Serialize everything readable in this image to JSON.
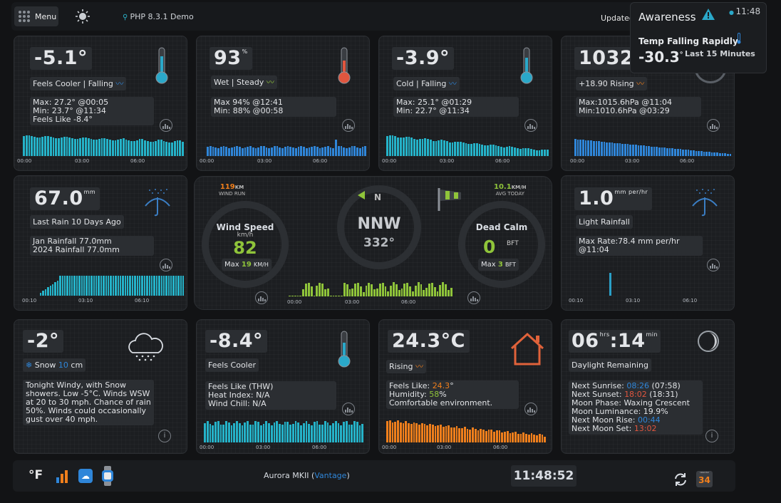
{
  "header": {
    "menu": "Menu",
    "php_label": "PHP 8.3.1 Demo",
    "updated": "Updated"
  },
  "alert": {
    "title": "Awareness",
    "time": "11:48",
    "heading": "Temp Falling Rapidly",
    "value": "-30.3",
    "value_unit": "°",
    "period": "Last 15 Minutes"
  },
  "temp_card": {
    "value": "-5.1°",
    "tag": "Feels Cooler | Falling",
    "stats": [
      "Max: 27.2° @00:05",
      "Min: 23.7° @11:34",
      "Feels Like -8.4°"
    ],
    "axis": [
      "00:00",
      "03:00",
      "06:00"
    ]
  },
  "humidity_card": {
    "value": "93",
    "unit": "%",
    "tag": "Wet | Steady",
    "stats": [
      "Max 94% @12:41",
      "Min: 88% @00:58"
    ],
    "axis": [
      "00:00",
      "03:00",
      "06:00"
    ]
  },
  "dew_card": {
    "value": "-3.9°",
    "tag": "Cold | Falling",
    "stats": [
      "Max: 25.1° @01:29",
      "Min: 22.7° @11:34"
    ],
    "axis": [
      "00:00",
      "03:00",
      "06:00"
    ]
  },
  "pressure_card": {
    "value": "1032",
    "tag": "+18.90 Rising",
    "stats": [
      "Max:1015.6hPa @11:04",
      "Min:1010.6hPa @03:29"
    ],
    "axis": [
      "00:00",
      "03:00",
      "06:00"
    ]
  },
  "rain_card": {
    "value": "67.0",
    "unit": "mm",
    "tag": "Last Rain 10 Days Ago",
    "stats": [
      "Jan Rainfall 77.0mm",
      "2024 Rainfall 77.0mm"
    ],
    "axis": [
      "00:10",
      "03:10",
      "06:10"
    ]
  },
  "wind_card": {
    "run_value": "119",
    "run_unit": "KM",
    "run_label": "WIND RUN",
    "avg_value": "10.1",
    "avg_unit": "KM/H",
    "avg_label": "AVG TODAY",
    "speed_title": "Wind Speed",
    "speed_unit": "km/h",
    "speed_value": "82",
    "speed_max_label": "Max",
    "speed_max_value": "19",
    "speed_max_unit": "KM/H",
    "compass_n": "N",
    "direction": "NNW",
    "degrees": "332°",
    "bft_title": "Dead Calm",
    "bft_value": "0",
    "bft_unit": "BFT",
    "bft_max_label": "Max",
    "bft_max_value": "3",
    "bft_max_unit": "BFT",
    "axis": [
      "00:00",
      "03:00",
      "06:00"
    ]
  },
  "rainrate_card": {
    "value": "1.0",
    "unit": "mm per/hr",
    "tag": "Light Rainfall",
    "stats": [
      "Max Rate:78.4 mm per/hr",
      "@11:04"
    ],
    "axis": [
      "00:10",
      "03:10",
      "06:10"
    ]
  },
  "forecast_card": {
    "value": "-2°",
    "tag_prefix": "Snow",
    "tag_value": "10",
    "tag_unit": "cm",
    "text": [
      "Tonight Windy, with Snow",
      "showers. Low -5°C. Winds WSW",
      "at 20 to 30 mph. Chance of rain",
      "50%. Winds could occasionally",
      "gust over 40 mph."
    ]
  },
  "indoor_card": {
    "value": "-8.4°",
    "tag": "Feels Cooler",
    "stats": [
      "Feels Like (THW)",
      "Heat Index: N/A",
      " Wind Chill: N/A"
    ],
    "axis": [
      "00:00",
      "03:00",
      "06:00"
    ]
  },
  "house_card": {
    "value": "24.3°C",
    "tag": "Rising",
    "feels_label": "Feels Like: ",
    "feels_value": "24.3",
    "feels_unit": "°",
    "hum_label": "Humidity: ",
    "hum_value": "58",
    "hum_unit": "%",
    "comfort": "Comfortable environment.",
    "axis": [
      "00:00",
      "03:00",
      "06:00"
    ]
  },
  "daylight_card": {
    "hours": "06",
    "hrs": "hrs",
    "sep": ":",
    "mins": "14",
    "min": "min",
    "tag": "Daylight Remaining",
    "sunrise_label": "Next Sunrise: ",
    "sunrise_value": "08:26",
    "sunrise_extra": " (07:58)",
    "sunset_label": "Next Sunset: ",
    "sunset_value": "18:02",
    "sunset_extra": " (18:31)",
    "phase": "Moon Phase: Waxing Crescent",
    "lum": "Moon Luminance: 19.9%",
    "moonrise_label": "Next Moon Rise: ",
    "moonrise_value": "00:44",
    "moonset_label": "Next Moon Set: ",
    "moonset_value": "13:02"
  },
  "footer": {
    "unit_f": "°F",
    "station": "Aurora MKII (",
    "station_link": "Vantage",
    "station_close": ")",
    "clock": "11:48:52",
    "cal_month": "calendar",
    "cal_day": "34"
  },
  "colors": {
    "cyan": "#25b3c9",
    "blue": "#2f86d9",
    "green": "#8fc43a",
    "orange": "#f07f1c",
    "red": "#e0563f"
  }
}
